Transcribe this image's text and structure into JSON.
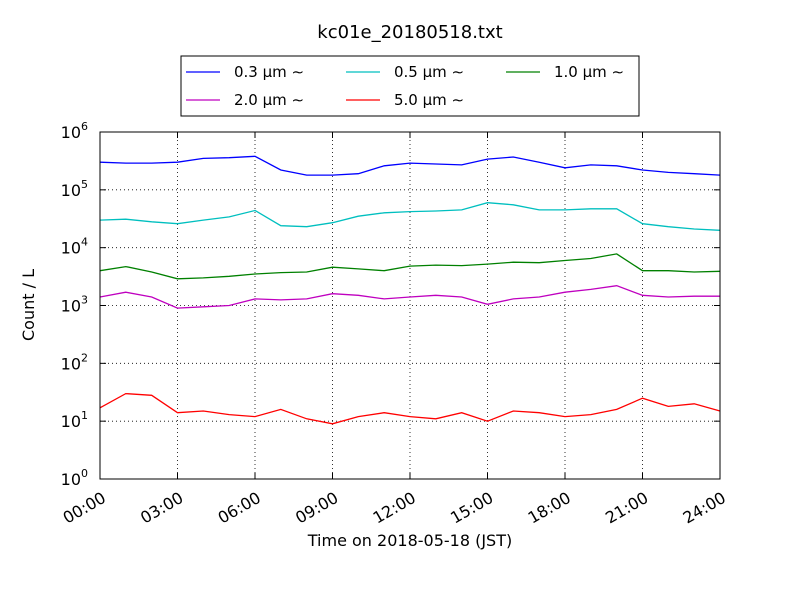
{
  "chart_data": {
    "type": "line",
    "title": "kc01e_20180518.txt",
    "xlabel": "Time on 2018-05-18 (JST)",
    "ylabel": "Count / L",
    "xlim": [
      "00:00",
      "24:00"
    ],
    "ylim": [
      1,
      1000000
    ],
    "yscale": "log",
    "grid": true,
    "legend_position": "top-center",
    "x_ticks": [
      "00:00",
      "03:00",
      "06:00",
      "09:00",
      "12:00",
      "15:00",
      "18:00",
      "21:00",
      "24:00"
    ],
    "y_ticks": [
      {
        "base": "10",
        "exp": "0"
      },
      {
        "base": "10",
        "exp": "1"
      },
      {
        "base": "10",
        "exp": "2"
      },
      {
        "base": "10",
        "exp": "3"
      },
      {
        "base": "10",
        "exp": "4"
      },
      {
        "base": "10",
        "exp": "5"
      },
      {
        "base": "10",
        "exp": "6"
      }
    ],
    "x_hours": [
      0,
      1,
      2,
      3,
      4,
      5,
      6,
      7,
      8,
      9,
      10,
      11,
      12,
      13,
      14,
      15,
      16,
      17,
      18,
      19,
      20,
      21,
      22,
      23,
      24
    ],
    "series": [
      {
        "name": "0.3 μm ∼",
        "color": "#0000ff",
        "values": [
          300000,
          290000,
          290000,
          300000,
          350000,
          360000,
          380000,
          220000,
          180000,
          180000,
          190000,
          260000,
          290000,
          280000,
          270000,
          340000,
          370000,
          300000,
          240000,
          270000,
          260000,
          220000,
          200000,
          190000,
          180000
        ]
      },
      {
        "name": "0.5 μm ∼",
        "color": "#00bfbf",
        "values": [
          30000,
          31000,
          28000,
          26000,
          30000,
          34000,
          44000,
          24000,
          23000,
          27000,
          35000,
          40000,
          42000,
          43000,
          45000,
          60000,
          55000,
          45000,
          45000,
          47000,
          47000,
          26000,
          23000,
          21000,
          20000
        ]
      },
      {
        "name": "1.0 μm ∼",
        "color": "#008000",
        "values": [
          4000,
          4700,
          3800,
          2900,
          3000,
          3200,
          3500,
          3700,
          3800,
          4600,
          4300,
          4000,
          4800,
          5000,
          4900,
          5200,
          5600,
          5500,
          6000,
          6500,
          7800,
          4000,
          4000,
          3800,
          3900
        ]
      },
      {
        "name": "2.0 μm ∼",
        "color": "#bf00bf",
        "values": [
          1400,
          1700,
          1400,
          900,
          950,
          1000,
          1300,
          1250,
          1300,
          1600,
          1500,
          1300,
          1400,
          1500,
          1400,
          1050,
          1300,
          1400,
          1700,
          1900,
          2200,
          1500,
          1400,
          1450,
          1450
        ]
      },
      {
        "name": "5.0 μm ∼",
        "color": "#ff0000",
        "values": [
          17,
          30,
          28,
          14,
          15,
          13,
          12,
          16,
          11,
          9,
          12,
          14,
          12,
          11,
          14,
          10,
          15,
          14,
          12,
          13,
          16,
          25,
          18,
          20,
          15
        ]
      }
    ]
  }
}
